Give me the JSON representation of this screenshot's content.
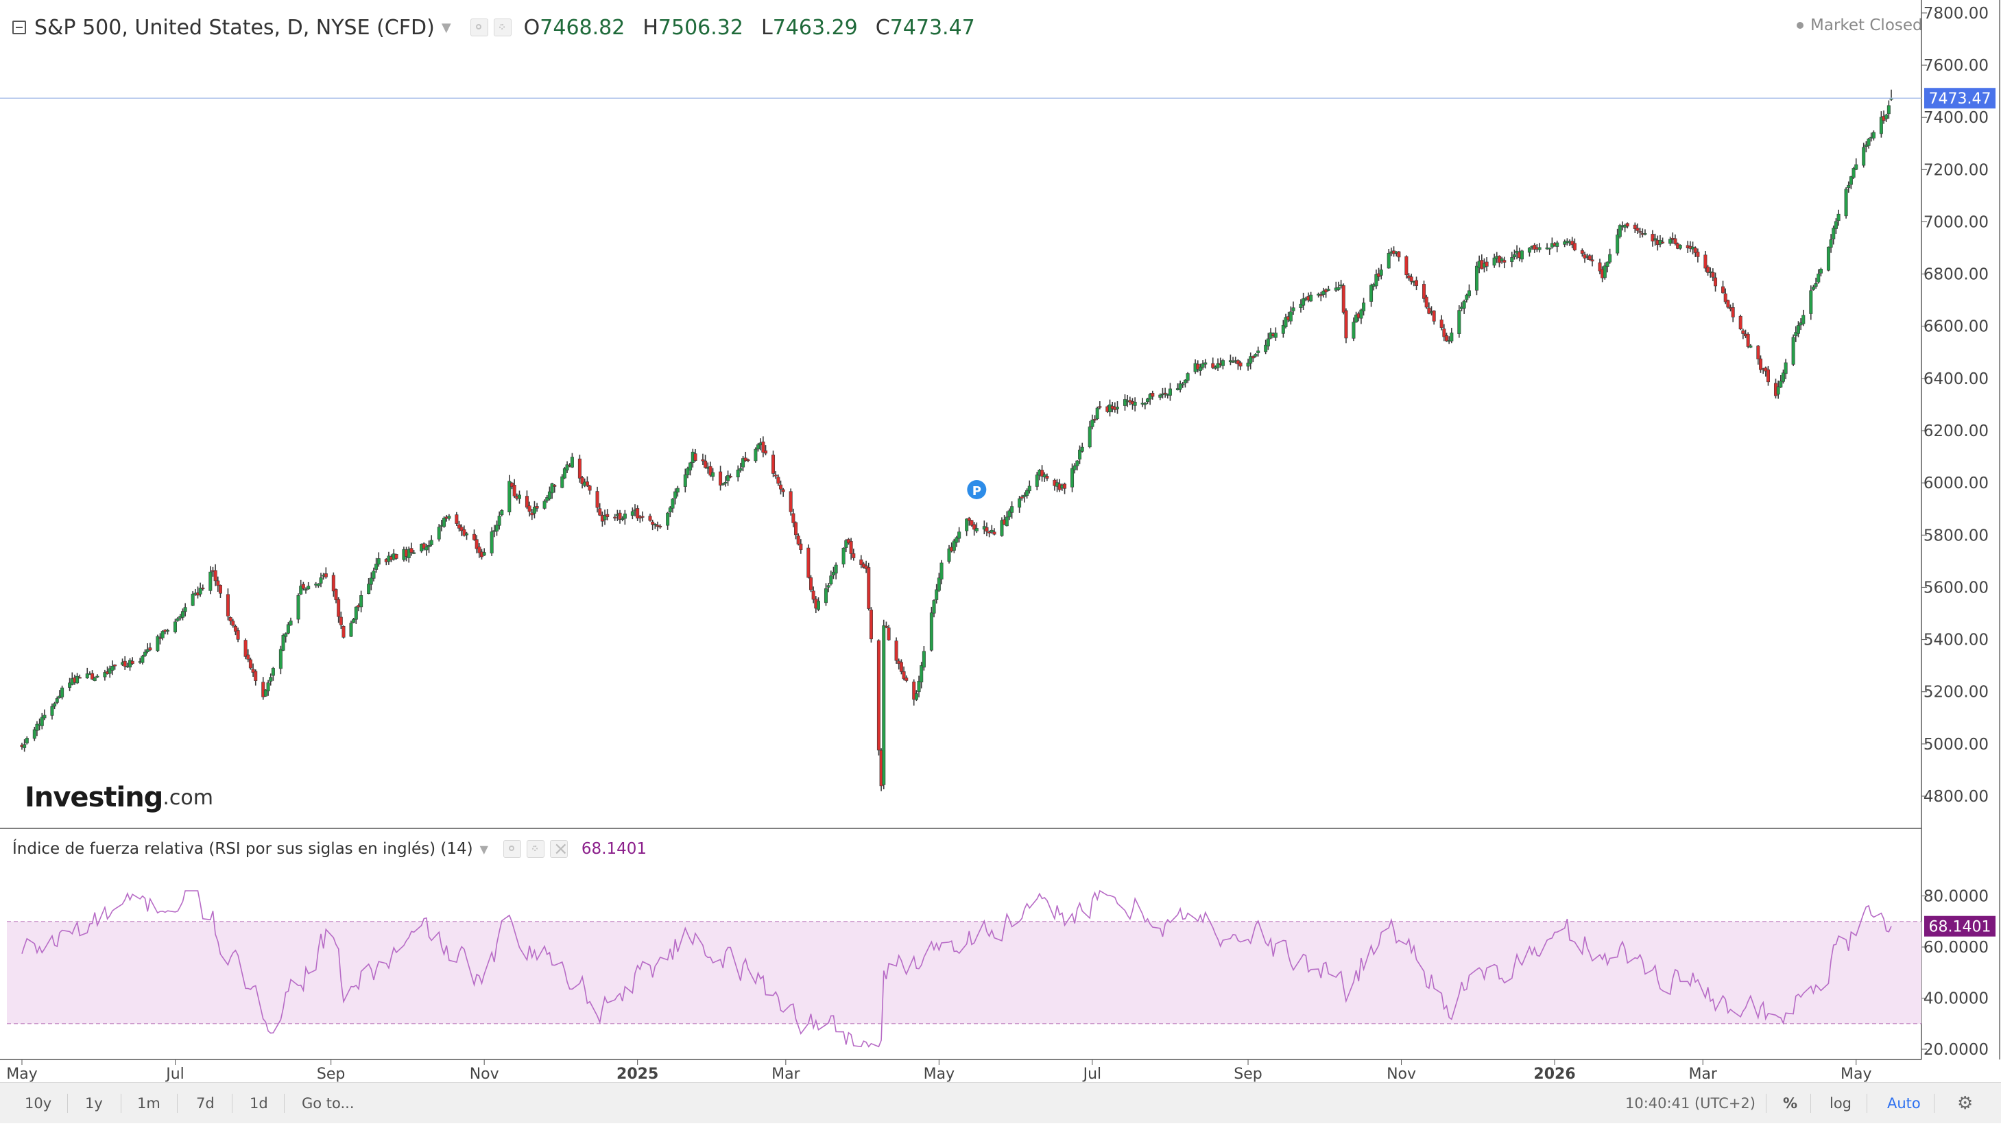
{
  "header": {
    "symbol_title": "S&P 500, United States, D, NYSE (CFD)",
    "open_label": "O",
    "open_value": "7468.82",
    "high_label": "H",
    "high_value": "7506.32",
    "low_label": "L",
    "low_value": "7463.29",
    "close_label": "C",
    "close_value": "7473.47",
    "market_status": "Market Closed"
  },
  "logo": {
    "text_bold": "Investing",
    "text_light": ".com"
  },
  "rsi_header": {
    "title": "Índice de fuerza relativa (RSI por sus siglas en inglés) (14)",
    "value": "68.1401"
  },
  "price_axis": {
    "ticks": [
      "7800.00",
      "7600.00",
      "7400.00",
      "7200.00",
      "7000.00",
      "6800.00",
      "6600.00",
      "6400.00",
      "6200.00",
      "6000.00",
      "5800.00",
      "5600.00",
      "5400.00",
      "5200.00",
      "5000.00",
      "4800.00"
    ],
    "last_price_label": "7473.47"
  },
  "rsi_axis": {
    "ticks": [
      "80.0000",
      "60.0000",
      "40.0000",
      "20.0000"
    ],
    "last_value_label": "68.1401"
  },
  "time_axis": {
    "labels": [
      "May",
      "Jul",
      "Sep",
      "Nov",
      "2025",
      "Mar",
      "May",
      "Jul",
      "Sep",
      "Nov",
      "2026",
      "Mar",
      "May"
    ],
    "bold": [
      false,
      false,
      false,
      false,
      true,
      false,
      false,
      false,
      false,
      false,
      true,
      false,
      false
    ]
  },
  "bottom_bar": {
    "ranges": [
      "10y",
      "1y",
      "1m",
      "7d",
      "1d"
    ],
    "goto": "Go to...",
    "clock": "10:40:41 (UTC+2)",
    "percent": "%",
    "log": "log",
    "auto": "Auto"
  },
  "colors": {
    "up": "#26a04a",
    "down": "#d9302e",
    "wick": "#3a3a3a",
    "rsi_line": "#b76bc6",
    "rsi_band": "#f4e3f4",
    "last_price_bg": "#4a73ea",
    "rsi_last_bg": "#7d187d",
    "auto_active": "#2b6ff0"
  },
  "chart_data": [
    {
      "type": "candlestick",
      "title": "S&P 500, United States, D, NYSE (CFD)",
      "x_axis_labels": [
        "May 2024",
        "Jul 2024",
        "Sep 2024",
        "Nov 2024",
        "Jan 2025",
        "Mar 2025",
        "May 2025",
        "Jul 2025",
        "Sep 2025",
        "Nov 2025",
        "Jan 2026",
        "Mar 2026",
        "May 2026"
      ],
      "ylim": [
        4700,
        7850
      ],
      "close_path": [
        [
          "2024-05-01",
          4990
        ],
        [
          "2024-05-20",
          5240
        ],
        [
          "2024-06-15",
          5310
        ],
        [
          "2024-07-01",
          5470
        ],
        [
          "2024-07-16",
          5660
        ],
        [
          "2024-07-25",
          5420
        ],
        [
          "2024-08-05",
          5180
        ],
        [
          "2024-08-20",
          5600
        ],
        [
          "2024-09-01",
          5640
        ],
        [
          "2024-09-06",
          5410
        ],
        [
          "2024-09-20",
          5700
        ],
        [
          "2024-10-10",
          5760
        ],
        [
          "2024-10-18",
          5880
        ],
        [
          "2024-11-01",
          5720
        ],
        [
          "2024-11-11",
          5990
        ],
        [
          "2024-11-20",
          5880
        ],
        [
          "2024-12-06",
          6090
        ],
        [
          "2024-12-18",
          5860
        ],
        [
          "2024-12-31",
          5880
        ],
        [
          "2025-01-10",
          5820
        ],
        [
          "2025-01-23",
          6110
        ],
        [
          "2025-02-03",
          6000
        ],
        [
          "2025-02-19",
          6140
        ],
        [
          "2025-03-01",
          5950
        ],
        [
          "2025-03-13",
          5520
        ],
        [
          "2025-03-25",
          5770
        ],
        [
          "2025-04-02",
          5660
        ],
        [
          "2025-04-08",
          4850
        ],
        [
          "2025-04-09",
          5460
        ],
        [
          "2025-04-21",
          5160
        ],
        [
          "2025-05-02",
          5680
        ],
        [
          "2025-05-12",
          5850
        ],
        [
          "2025-05-23",
          5800
        ],
        [
          "2025-06-10",
          6040
        ],
        [
          "2025-06-20",
          5970
        ],
        [
          "2025-07-03",
          6280
        ],
        [
          "2025-07-31",
          6340
        ],
        [
          "2025-08-12",
          6450
        ],
        [
          "2025-09-01",
          6460
        ],
        [
          "2025-09-22",
          6690
        ],
        [
          "2025-10-08",
          6760
        ],
        [
          "2025-10-10",
          6550
        ],
        [
          "2025-10-28",
          6900
        ],
        [
          "2025-11-20",
          6540
        ],
        [
          "2025-12-01",
          6830
        ],
        [
          "2025-12-19",
          6880
        ],
        [
          "2026-01-05",
          6930
        ],
        [
          "2026-01-20",
          6800
        ],
        [
          "2026-01-27",
          6980
        ],
        [
          "2026-02-10",
          6930
        ],
        [
          "2026-02-25",
          6900
        ],
        [
          "2026-03-10",
          6700
        ],
        [
          "2026-03-30",
          6340
        ],
        [
          "2026-04-08",
          6600
        ],
        [
          "2026-04-20",
          6900
        ],
        [
          "2026-05-01",
          7230
        ],
        [
          "2026-05-12",
          7400
        ],
        [
          "2026-05-15",
          7473.47
        ]
      ],
      "last_ohlc": {
        "open": 7468.82,
        "high": 7506.32,
        "low": 7463.29,
        "close": 7473.47
      }
    },
    {
      "type": "line",
      "title": "Índice de fuerza relativa (RSI por sus siglas en inglés) (14)",
      "ylim": [
        20,
        85
      ],
      "overbought": 70,
      "oversold": 30,
      "last_value": 68.1401,
      "rsi_path": [
        [
          "2024-05-01",
          57
        ],
        [
          "2024-06-05",
          72
        ],
        [
          "2024-07-10",
          80
        ],
        [
          "2024-08-05",
          30
        ],
        [
          "2024-09-01",
          65
        ],
        [
          "2024-09-06",
          42
        ],
        [
          "2024-10-10",
          66
        ],
        [
          "2024-11-01",
          44
        ],
        [
          "2024-11-11",
          71
        ],
        [
          "2024-12-18",
          37
        ],
        [
          "2025-01-23",
          66
        ],
        [
          "2025-03-13",
          29
        ],
        [
          "2025-04-08",
          22
        ],
        [
          "2025-04-09",
          48
        ],
        [
          "2025-05-02",
          63
        ],
        [
          "2025-07-03",
          77
        ],
        [
          "2025-09-01",
          65
        ],
        [
          "2025-10-10",
          45
        ],
        [
          "2025-10-28",
          69
        ],
        [
          "2025-11-20",
          39
        ],
        [
          "2026-01-05",
          65
        ],
        [
          "2026-03-10",
          41
        ],
        [
          "2026-03-30",
          28
        ],
        [
          "2026-05-12",
          78
        ],
        [
          "2026-05-15",
          68.1401
        ]
      ]
    }
  ]
}
